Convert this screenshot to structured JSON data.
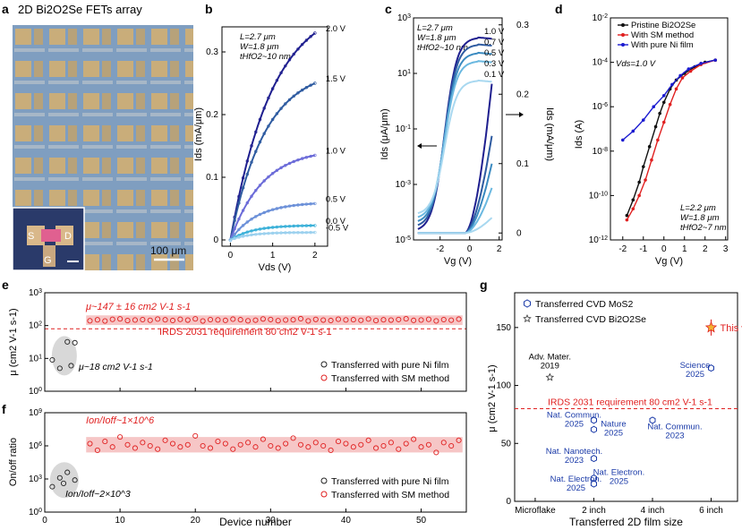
{
  "panel_letters": [
    "a",
    "b",
    "c",
    "d",
    "e",
    "f",
    "g"
  ],
  "panel_a": {
    "title": "2D Bi2O2Se FETs array",
    "scale_bar": "100 μm",
    "inset_labels": [
      "S",
      "D",
      "G"
    ]
  },
  "chart_data": [
    {
      "id": "b",
      "type": "line",
      "ylabel": "Ids (mA/μm)",
      "xlabel": "Vds (V)",
      "xlim": [
        -0.2,
        2.3
      ],
      "ylim": [
        -0.01,
        0.34
      ],
      "xticks": [
        0,
        1,
        2
      ],
      "yticks": [
        0,
        0.1,
        0.2,
        0.3
      ],
      "annotation": [
        "L=2.7 μm",
        "W=1.8 μm",
        "tHfO2~10 nm"
      ],
      "series": [
        {
          "name": "2.0 V",
          "sat": 0.33,
          "k": 1.0,
          "color": "#1f1f8f"
        },
        {
          "name": "1.5 V",
          "sat": 0.25,
          "k": 1.2,
          "color": "#2d5aa0"
        },
        {
          "name": "1.0 V",
          "sat": 0.135,
          "k": 1.3,
          "color": "#6a6ad8"
        },
        {
          "name": "0.5 V",
          "sat": 0.058,
          "k": 1.6,
          "color": "#6a8fd8"
        },
        {
          "name": "0.0 V",
          "sat": 0.023,
          "k": 1.9,
          "color": "#3ab0d8"
        },
        {
          "name": "-0.5 V",
          "sat": 0.012,
          "k": 2.2,
          "color": "#9ad0ee"
        }
      ]
    },
    {
      "id": "c",
      "type": "line",
      "ylabel": "Ids (μA/μm)",
      "ylabel_right": "Ids (mA/μm)",
      "xlabel": "Vg (V)",
      "xlim": [
        -3.8,
        2.2
      ],
      "xticks": [
        -2,
        0,
        2
      ],
      "log_ylim_exp": [
        -5,
        3
      ],
      "log_yticks_exp": [
        -5,
        -3,
        -1,
        1,
        3
      ],
      "right_ylim": [
        -0.01,
        0.31
      ],
      "right_yticks": [
        0,
        0.1,
        0.2,
        0.3
      ],
      "annotation": [
        "L=2.7 μm",
        "W=1.8 μm",
        "tHfO2~10 nm"
      ],
      "series": [
        {
          "name": "1.0 V",
          "on_exp": 2.3,
          "lin_max": 0.215,
          "color": "#1f1f8f"
        },
        {
          "name": "0.7 V",
          "on_exp": 2.05,
          "lin_max": 0.14,
          "color": "#2d5aa0"
        },
        {
          "name": "0.5 V",
          "on_exp": 1.75,
          "lin_max": 0.1,
          "color": "#3a8ac0"
        },
        {
          "name": "0.3 V",
          "on_exp": 1.45,
          "lin_max": 0.065,
          "color": "#6ab8e0"
        },
        {
          "name": "0.1 V",
          "on_exp": 0.75,
          "lin_max": 0.022,
          "color": "#a8d8f0"
        }
      ]
    },
    {
      "id": "d",
      "type": "line",
      "ylabel": "Ids (A)",
      "xlabel": "Vg (V)",
      "xlim": [
        -2.6,
        3.1
      ],
      "xticks": [
        -2,
        -1,
        0,
        1,
        2,
        3
      ],
      "log_ylim_exp": [
        -12,
        -2
      ],
      "log_yticks_exp": [
        -12,
        -10,
        -8,
        -6,
        -4,
        -2
      ],
      "vds_label": "Vds=1.0 V",
      "annotation": [
        "L=2.2 μm",
        "W=1.8 μm",
        "tHfO2~7 nm"
      ],
      "series": [
        {
          "name": "Pristine Bi2O2Se",
          "color": "#111111",
          "points": [
            [
              -1.8,
              -10.9
            ],
            [
              -1.5,
              -10.2
            ],
            [
              -1.2,
              -9.4
            ],
            [
              -1,
              -8.7
            ],
            [
              -0.7,
              -7.8
            ],
            [
              -0.4,
              -6.9
            ],
            [
              -0.2,
              -6.3
            ],
            [
              0,
              -5.8
            ],
            [
              0.3,
              -5.2
            ],
            [
              0.6,
              -4.8
            ],
            [
              1,
              -4.5
            ],
            [
              1.5,
              -4.2
            ],
            [
              2,
              -4.0
            ],
            [
              2.5,
              -3.9
            ]
          ]
        },
        {
          "name": "With SM method",
          "color": "#e02020",
          "points": [
            [
              -1.8,
              -11.1
            ],
            [
              -1.5,
              -10.6
            ],
            [
              -1.2,
              -10.0
            ],
            [
              -0.9,
              -9.3
            ],
            [
              -0.6,
              -8.4
            ],
            [
              -0.3,
              -7.5
            ],
            [
              0,
              -6.7
            ],
            [
              0.3,
              -5.9
            ],
            [
              0.6,
              -5.2
            ],
            [
              0.9,
              -4.7
            ],
            [
              1.3,
              -4.4
            ],
            [
              1.8,
              -4.1
            ],
            [
              2.5,
              -3.9
            ]
          ]
        },
        {
          "name": "With pure Ni film",
          "color": "#1a1ad0",
          "points": [
            [
              -2.0,
              -7.5
            ],
            [
              -1.5,
              -7.1
            ],
            [
              -1.0,
              -6.6
            ],
            [
              -0.5,
              -6.0
            ],
            [
              0,
              -5.5
            ],
            [
              0.4,
              -5.0
            ],
            [
              0.8,
              -4.6
            ],
            [
              1.2,
              -4.3
            ],
            [
              1.8,
              -4.05
            ],
            [
              2.5,
              -3.9
            ]
          ]
        }
      ]
    },
    {
      "id": "e",
      "type": "scatter",
      "ylabel": "μ (cm2 V-1 s-1)",
      "xlim": [
        0,
        56
      ],
      "xticks": [
        0,
        10,
        20,
        30,
        40,
        50
      ],
      "log_ylim_exp": [
        0,
        3
      ],
      "log_yticks_exp": [
        0,
        1,
        2,
        3
      ],
      "ref_value": 80,
      "ref_label": "IRDS 2031 requirement 80 cm2 V-1 s-1",
      "band_range": [
        104,
        205
      ],
      "sm_label": "μ~147 ± 16 cm2 V-1 s-1",
      "ni_label": "μ~18 cm2 V-1 s-1",
      "legend": [
        "Transferred with pure Ni film",
        "Transferred with SM method"
      ],
      "ni_points": [
        [
          1,
          9
        ],
        [
          2,
          5
        ],
        [
          3,
          32
        ],
        [
          4,
          30
        ],
        [
          3.5,
          6
        ]
      ],
      "sm_values": [
        140,
        150,
        138,
        155,
        160,
        142,
        148,
        152,
        145,
        158,
        150,
        143,
        155,
        147,
        160,
        138,
        152,
        149,
        144,
        157,
        151,
        140,
        146,
        159,
        153,
        141,
        148,
        150,
        162,
        139,
        154,
        147,
        143,
        156,
        149,
        151,
        145,
        158,
        142,
        150,
        147,
        153,
        161,
        144,
        148,
        155,
        139,
        152,
        146,
        157
      ]
    },
    {
      "id": "f",
      "type": "scatter",
      "ylabel": "On/off ratio",
      "xlabel": "Device number",
      "xlim": [
        0,
        56
      ],
      "xticks": [
        0,
        10,
        20,
        30,
        40,
        50
      ],
      "log_ylim_exp": [
        0,
        9
      ],
      "log_yticks_exp": [
        0,
        3,
        6,
        9
      ],
      "band_exp": [
        5.4,
        6.8
      ],
      "sm_label": "Ion/Ioff~1×10^6",
      "ni_label": "Ion/Ioff~2×10^3",
      "legend": [
        "Transferred with pure Ni film",
        "Transferred with SM method"
      ],
      "ni_points": [
        [
          1,
          2.3
        ],
        [
          2,
          3.1
        ],
        [
          3,
          3.6
        ],
        [
          4,
          2.9
        ],
        [
          2.5,
          2.6
        ]
      ],
      "sm_exp": [
        6.2,
        5.6,
        6.4,
        5.9,
        6.8,
        6.1,
        5.8,
        6.3,
        6.0,
        5.7,
        6.5,
        6.2,
        5.9,
        6.1,
        6.9,
        6.0,
        5.8,
        6.4,
        6.2,
        5.7,
        6.1,
        6.3,
        5.9,
        6.6,
        6.0,
        5.8,
        6.2,
        6.7,
        6.1,
        5.9,
        6.3,
        6.0,
        5.6,
        6.4,
        6.2,
        5.9,
        6.1,
        6.5,
        5.8,
        6.0,
        6.3,
        5.7,
        6.2,
        6.6,
        5.9,
        6.1,
        5.4,
        6.3,
        6.0,
        6.5
      ]
    },
    {
      "id": "g",
      "type": "scatter",
      "ylabel": "μ (cm2 V-1 s-1)",
      "xlabel": "Transferred 2D film size",
      "categories": [
        "Microflake",
        "2 inch",
        "4 inch",
        "6 inch"
      ],
      "ylim": [
        0,
        180
      ],
      "yticks": [
        0,
        50,
        100,
        150
      ],
      "ref_value": 80,
      "ref_label": "IRDS 2031 requirement 80 cm2 V-1 s-1",
      "legend": [
        "Transferred CVD MoS2",
        "Transferred CVD Bi2O2Se"
      ],
      "this_work": {
        "x": 3.0,
        "y": 150,
        "label": "This work"
      },
      "star_points": [
        {
          "x": 0.25,
          "y": 107,
          "label": [
            "Adv. Mater.",
            "2019"
          ]
        }
      ],
      "hex_points": [
        {
          "x": 1.0,
          "y": 70,
          "label": [
            "Nat. Commun.",
            "2025"
          ]
        },
        {
          "x": 1.0,
          "y": 62,
          "label": [
            "Nature",
            "2025"
          ]
        },
        {
          "x": 1.0,
          "y": 37,
          "label": [
            "Nat. Nanotech.",
            "2023"
          ]
        },
        {
          "x": 1.0,
          "y": 20,
          "label": [
            "Nat. Electron.",
            "2025"
          ]
        },
        {
          "x": 1.0,
          "y": 15,
          "label": [
            "Nat. Electron.",
            "2025"
          ]
        },
        {
          "x": 2.0,
          "y": 70,
          "label": [
            "Nat. Commun.",
            "2023"
          ]
        },
        {
          "x": 3.0,
          "y": 115,
          "label": [
            "Science",
            "2025"
          ]
        }
      ]
    }
  ],
  "colors": {
    "sm_red": "#e02020",
    "band": "#f6c6c6",
    "navy": "#1a3aa8",
    "ref_red": "#e02020"
  }
}
